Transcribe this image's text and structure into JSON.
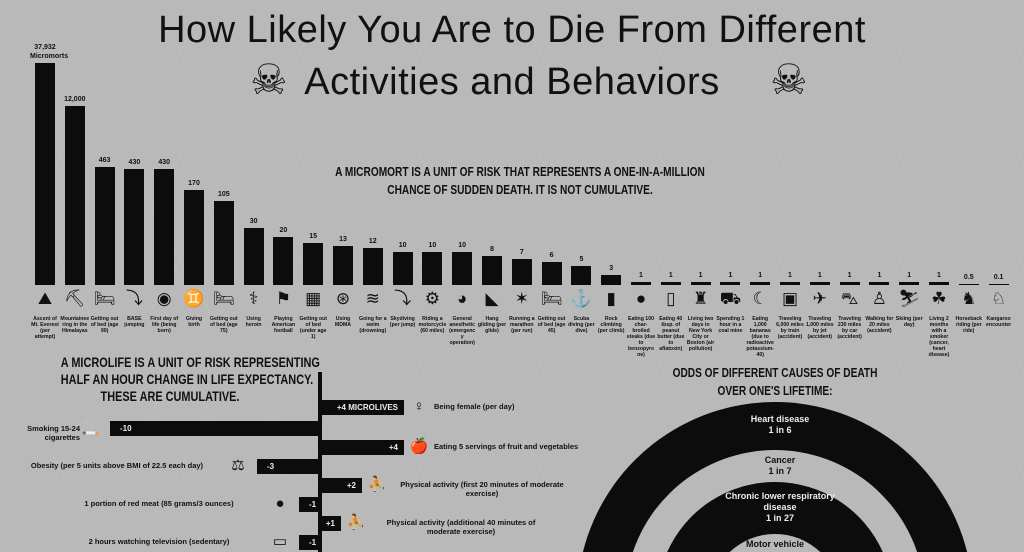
{
  "title_line1": "How Likely You Are to Die From Different",
  "title_line2": "Activities and Behaviors",
  "skull_icon": "☠",
  "micromort_note_line1": "A MICROMORT IS A UNIT OF RISK THAT REPRESENTS A ONE-IN-A-MILLION",
  "micromort_note_line2": "CHANCE OF SUDDEN DEATH. IT IS NOT CUMULATIVE.",
  "microlife_note_line1": "A MICROLIFE IS A UNIT OF RISK REPRESENTING",
  "microlife_note_line2": "HALF AN HOUR CHANGE IN LIFE EXPECTANCY.",
  "microlife_note_line3": "THESE ARE CUMULATIVE.",
  "odds_title_line1": "ODDS OF DIFFERENT CAUSES OF DEATH",
  "odds_title_line2": "OVER ONE'S LIFETIME:",
  "colors": {
    "background": "#b9b9b9",
    "ink": "#0c0c0c",
    "light": "#eeeeee"
  },
  "chart_data": [
    {
      "type": "bar",
      "title": "Micromorts",
      "unit_label": "Micromorts",
      "categories": [
        "Ascent of Mt. Everest (per attempt)",
        "Mountaineering in the Himalayas",
        "Getting out of bed (age 90)",
        "BASE jumping",
        "First day of life (being born)",
        "Giving birth",
        "Getting out of bed (age 75)",
        "Using heroin",
        "Playing American football",
        "Getting out of bed (under age 1)",
        "Using MDMA",
        "Going for a swim (drowning)",
        "Skydiving (per jump)",
        "Riding a motorcycle (60 miles)",
        "General anesthetic (emergency operation)",
        "Hang gliding (per glide)",
        "Running a marathon (per run)",
        "Getting out of bed (age 45)",
        "Scuba diving (per dive)",
        "Rock climbing (per climb)",
        "Eating 100 char-broiled steaks (due to benzopyrene)",
        "Eating 40 tbsp. of peanut butter (due to aflatoxin)",
        "Living two days in New York City or Boston (air pollution)",
        "Spending 1 hour in a coal mine",
        "Eating 1,000 bananas (due to radioactive potassium-40)",
        "Traveling 6,000 miles by train (accident)",
        "Traveling 1,000 miles by jet (accident)",
        "Traveling 230 miles by car (accident)",
        "Walking for 20 miles (accident)",
        "Skiing (per day)",
        "Living 2 months with a smoker (cancer, heart disease)",
        "Horseback riding (per ride)",
        "Kangaroo encounter"
      ],
      "values": [
        37932,
        12000,
        463,
        430,
        430,
        170,
        105,
        30,
        20,
        15,
        13,
        12,
        10,
        10,
        10,
        8,
        7,
        6,
        5,
        3,
        1,
        1,
        1,
        1,
        1,
        1,
        1,
        1,
        1,
        1,
        1,
        0.5,
        0.1
      ],
      "value_labels": [
        "37,932",
        "12,000",
        "463",
        "430",
        "430",
        "170",
        "105",
        "30",
        "20",
        "15",
        "13",
        "12",
        "10",
        "10",
        "10",
        "8",
        "7",
        "6",
        "5",
        "3",
        "1",
        "1",
        "1",
        "1",
        "1",
        "1",
        "1",
        "1",
        "1",
        "1",
        "1",
        "0.5",
        "0.1"
      ],
      "icons": [
        "mountain-icon",
        "climbers-icon",
        "bed-icon",
        "parachute-jump-icon",
        "baby-icon",
        "birth-icon",
        "bed-icon",
        "syringe-icon",
        "football-icon",
        "crib-icon",
        "pills-icon",
        "swimmer-icon",
        "skydiver-icon",
        "motorcycle-icon",
        "anesthetic-icon",
        "hang-glider-icon",
        "runner-icon",
        "bed-icon",
        "diver-icon",
        "climber-icon",
        "steak-icon",
        "jar-icon",
        "statue-icon",
        "mine-cart-icon",
        "banana-icon",
        "train-icon",
        "plane-icon",
        "car-icon",
        "walker-icon",
        "skier-icon",
        "smoker-icon",
        "horse-icon",
        "kangaroo-icon"
      ],
      "glyphs": [
        "⛰",
        "⛏",
        "🛏",
        "⤵",
        "◉",
        "♊",
        "🛏",
        "⚕",
        "⚑",
        "▦",
        "⊛",
        "≋",
        "⤵",
        "⚙",
        "◕",
        "◣",
        "✶",
        "🛏",
        "⚓",
        "▮",
        "●",
        "▯",
        "♜",
        "⛟",
        "☾",
        "▣",
        "✈",
        "⛍",
        "♙",
        "⛷",
        "☘",
        "♞",
        "♘"
      ]
    },
    {
      "type": "bar",
      "orientation": "horizontal",
      "title": "Microlives",
      "categories": [
        "Being female (per day)",
        "Smoking 15-24 cigarettes",
        "Eating 5 servings of fruit and vegetables",
        "Obesity (per 5 units above BMI of 22.5 each day)",
        "Physical activity (first 20 minutes of moderate exercise)",
        "1 portion of red meat (85 grams/3 ounces)",
        "Physical activity (additional 40 minutes of moderate exercise)",
        "2 hours watching television (sedentary)"
      ],
      "values": [
        4,
        -10,
        4,
        -3,
        2,
        -1,
        1,
        -1
      ],
      "value_labels": [
        "+4 MICROLIVES",
        "-10",
        "+4",
        "-3",
        "+2",
        "-1",
        "+1",
        "-1"
      ],
      "icons": [
        "female-icon",
        "cigarette-icon",
        "fruit-icon",
        "scale-icon",
        "exercise-icon",
        "steak-icon",
        "jump-rope-icon",
        "television-icon"
      ],
      "glyphs": [
        "♀",
        "🚬",
        "🍎",
        "⚖",
        "⛹",
        "●",
        "⛹",
        "▭"
      ],
      "xlim": [
        -10,
        4
      ]
    },
    {
      "type": "pie",
      "title": "Odds of different causes of death over one's lifetime",
      "categories": [
        "Heart disease",
        "Cancer",
        "Chronic lower respiratory disease",
        "Motor vehicle"
      ],
      "value_labels": [
        "1 in 6",
        "1 in 7",
        "1 in 27",
        ""
      ],
      "values": [
        0.1667,
        0.1429,
        0.037,
        null
      ]
    }
  ]
}
